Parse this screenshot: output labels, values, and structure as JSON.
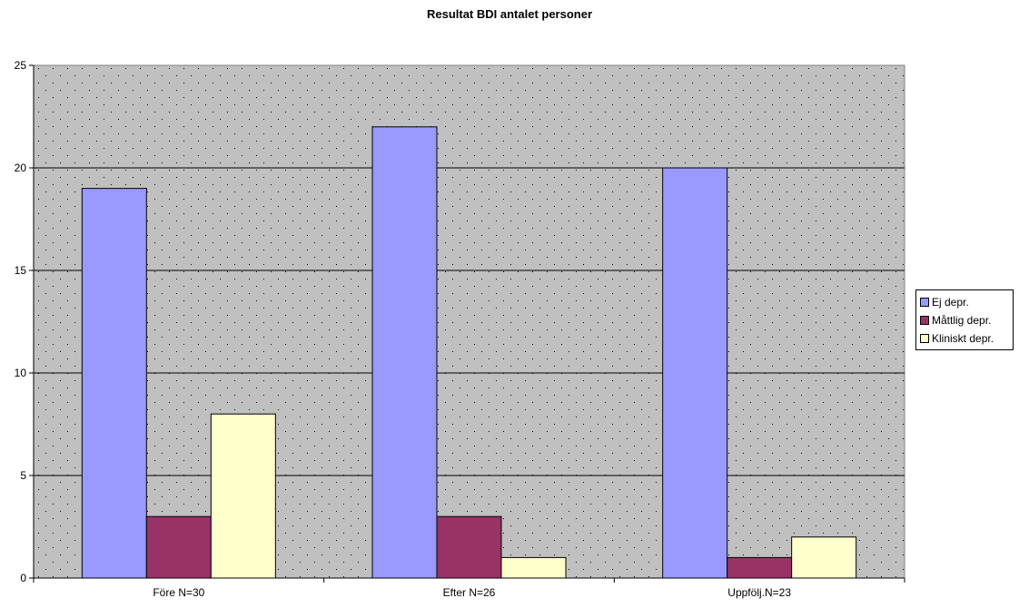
{
  "chart_data": {
    "type": "bar",
    "title": "Resultat BDI antalet personer",
    "categories": [
      "Före N=30",
      "Efter N=26",
      "Uppfölj.N=23"
    ],
    "series": [
      {
        "name": "Ej depr.",
        "color": "#9999ff",
        "values": [
          19,
          22,
          20
        ]
      },
      {
        "name": "Måttlig depr.",
        "color": "#993366",
        "values": [
          3,
          3,
          1
        ]
      },
      {
        "name": "Kliniskt depr.",
        "color": "#ffffcc",
        "values": [
          8,
          1,
          2
        ]
      }
    ],
    "yticks": [
      "0",
      "5",
      "10",
      "15",
      "20",
      "25"
    ],
    "ylim": [
      0,
      25
    ],
    "grid": true,
    "plot_background": "#c0c0c0",
    "legend_position": "right"
  }
}
